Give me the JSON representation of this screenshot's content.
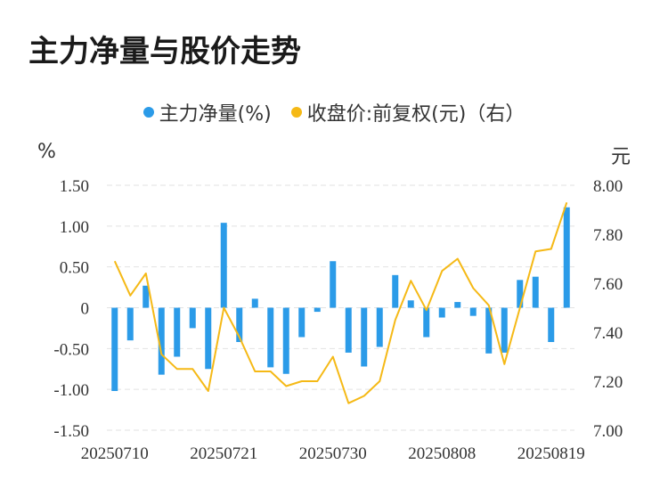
{
  "title": "主力净量与股价走势",
  "colors": {
    "bar": "#2b9be8",
    "line": "#f5b916",
    "grid": "#e2e2e2"
  },
  "chart_data": {
    "type": "bar",
    "legend": [
      {
        "label": "主力净量(%)",
        "color": "#2b9be8"
      },
      {
        "label": "收盘价:前复权(元)（右）",
        "color": "#f5b916"
      }
    ],
    "ylabel_left": "%",
    "ylabel_right": "元",
    "ylim_left": [
      -1.5,
      1.5
    ],
    "ylim_right": [
      7.0,
      8.0
    ],
    "yticks_left": [
      "1.50",
      "1.00",
      "0.50",
      "0",
      "-0.50",
      "-1.00",
      "-1.50"
    ],
    "yticks_right": [
      "8.00",
      "7.80",
      "7.60",
      "7.40",
      "7.20",
      "7.00"
    ],
    "x_tick_labels": [
      "20250710",
      "20250721",
      "20250730",
      "20250808",
      "20250819"
    ],
    "x_tick_indices": [
      0,
      7,
      14,
      21,
      28
    ],
    "series": [
      {
        "name": "主力净量(%)",
        "type": "bar",
        "axis": "left",
        "values": [
          -1.02,
          -0.4,
          0.27,
          -0.82,
          -0.6,
          -0.25,
          -0.75,
          1.04,
          -0.42,
          0.11,
          -0.73,
          -0.81,
          -0.36,
          -0.05,
          0.57,
          -0.55,
          -0.72,
          -0.48,
          0.4,
          0.09,
          -0.36,
          -0.12,
          0.07,
          -0.1,
          -0.56,
          -0.55,
          0.34,
          0.38,
          -0.42,
          1.23
        ]
      },
      {
        "name": "收盘价:前复权(元)（右）",
        "type": "line",
        "axis": "right",
        "values": [
          7.69,
          7.55,
          7.64,
          7.31,
          7.25,
          7.25,
          7.16,
          7.5,
          7.38,
          7.24,
          7.24,
          7.18,
          7.2,
          7.2,
          7.3,
          7.11,
          7.14,
          7.2,
          7.45,
          7.61,
          7.49,
          7.65,
          7.7,
          7.58,
          7.51,
          7.27,
          7.5,
          7.73,
          7.74,
          7.93
        ]
      }
    ]
  }
}
